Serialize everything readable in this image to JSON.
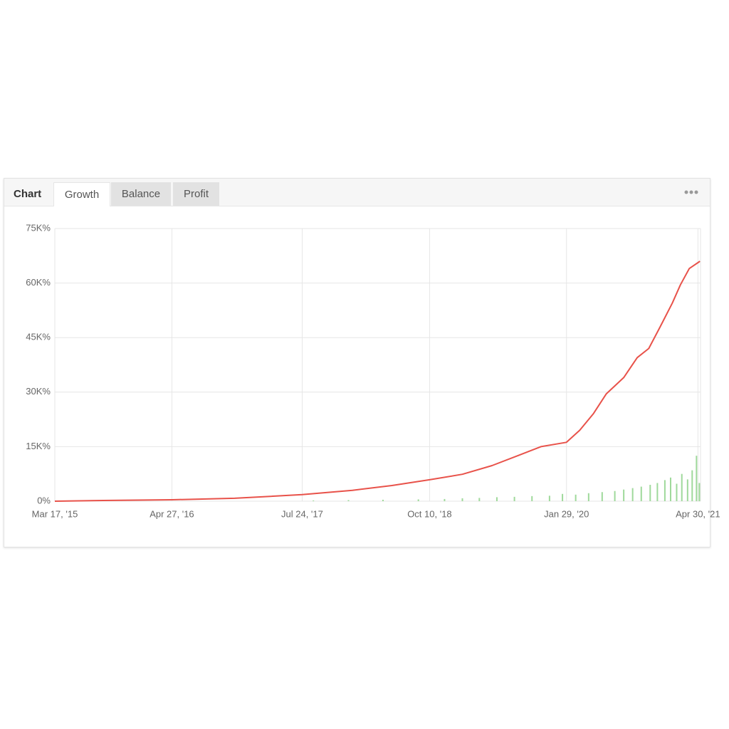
{
  "tabs": {
    "label": "Chart",
    "items": [
      "Growth",
      "Balance",
      "Profit"
    ]
  },
  "chart_data": {
    "type": "line",
    "xlim": [
      "2015-03-17",
      "2021-05-09"
    ],
    "xticks": [
      {
        "value": "2015-03-17",
        "label": "Mar 17, '15"
      },
      {
        "value": "2016-04-27",
        "label": "Apr 27, '16"
      },
      {
        "value": "2017-07-24",
        "label": "Jul 24, '17"
      },
      {
        "value": "2018-10-10",
        "label": "Oct 10, '18"
      },
      {
        "value": "2020-01-29",
        "label": "Jan 29, '20"
      },
      {
        "value": "2021-04-30",
        "label": "Apr 30, '21"
      }
    ],
    "ylim": [
      0,
      75000
    ],
    "yticks": [
      {
        "value": 0,
        "label": "0%"
      },
      {
        "value": 15000,
        "label": "15K%"
      },
      {
        "value": 30000,
        "label": "30K%"
      },
      {
        "value": 45000,
        "label": "45K%"
      },
      {
        "value": 60000,
        "label": "60K%"
      },
      {
        "value": 75000,
        "label": "75K%"
      }
    ],
    "grid": true,
    "series": [
      {
        "type": "line",
        "color": "#e8524a",
        "x": [
          "2015-03-17",
          "2015-09-01",
          "2016-04-27",
          "2016-12-01",
          "2017-07-24",
          "2018-01-15",
          "2018-06-01",
          "2018-10-10",
          "2019-02-01",
          "2019-05-15",
          "2019-08-15",
          "2019-11-01",
          "2020-01-29",
          "2020-03-15",
          "2020-05-01",
          "2020-06-15",
          "2020-08-15",
          "2020-10-01",
          "2020-11-10",
          "2020-12-20",
          "2021-01-31",
          "2021-02-28",
          "2021-03-31",
          "2021-05-07"
        ],
        "values": [
          0,
          200,
          400,
          800,
          1800,
          3000,
          4300,
          5900,
          7400,
          9800,
          12600,
          15000,
          16200,
          19500,
          24000,
          29500,
          34000,
          39500,
          42000,
          48000,
          54500,
          59500,
          64000,
          66000
        ]
      },
      {
        "type": "bar",
        "color": "#9fd99b",
        "x": [
          "2017-09-01",
          "2018-01-01",
          "2018-05-01",
          "2018-09-01",
          "2018-12-01",
          "2019-02-01",
          "2019-04-01",
          "2019-06-01",
          "2019-08-01",
          "2019-10-01",
          "2019-12-01",
          "2020-01-15",
          "2020-03-01",
          "2020-04-15",
          "2020-06-01",
          "2020-07-15",
          "2020-08-15",
          "2020-09-15",
          "2020-10-15",
          "2020-11-15",
          "2020-12-10",
          "2021-01-05",
          "2021-01-25",
          "2021-02-15",
          "2021-03-05",
          "2021-03-25",
          "2021-04-10",
          "2021-04-25",
          "2021-05-05"
        ],
        "values": [
          200,
          300,
          400,
          500,
          600,
          800,
          900,
          1100,
          1200,
          1400,
          1500,
          2000,
          1800,
          2200,
          2500,
          2800,
          3200,
          3600,
          4000,
          4500,
          5000,
          5800,
          6500,
          4800,
          7500,
          6000,
          8500,
          12500,
          5000
        ]
      }
    ]
  }
}
